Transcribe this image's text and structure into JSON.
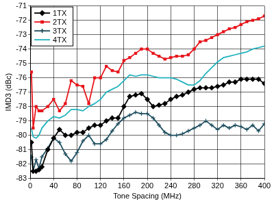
{
  "chart_data": {
    "type": "line",
    "x_label": "Tone Spacing (MHz)",
    "y_label": "IMD3 (dBc)",
    "x": [
      2,
      5,
      10,
      15,
      20,
      30,
      40,
      50,
      60,
      70,
      80,
      90,
      100,
      110,
      120,
      130,
      140,
      150,
      160,
      170,
      180,
      190,
      200,
      210,
      220,
      230,
      240,
      250,
      260,
      270,
      280,
      290,
      300,
      310,
      320,
      330,
      340,
      350,
      360,
      370,
      380,
      390,
      400
    ],
    "series": [
      {
        "name": "1TX",
        "color": "#000000",
        "marker": "diamond",
        "values": [
          -80.5,
          -82.5,
          -82.5,
          -82.4,
          -82.2,
          -81.0,
          -80.2,
          -79.6,
          -80.0,
          -80.0,
          -79.8,
          -79.8,
          -79.5,
          -79.3,
          -79.3,
          -79.0,
          -78.8,
          -78.8,
          -78.0,
          -77.3,
          -77.2,
          -77.1,
          -77.5,
          -78.0,
          -77.9,
          -77.8,
          -77.5,
          -77.3,
          -77.2,
          -77.0,
          -76.8,
          -76.7,
          -76.7,
          -76.7,
          -76.6,
          -76.5,
          -76.3,
          -76.3,
          -76.1,
          -76.1,
          -76.1,
          -76.1,
          -76.4
        ]
      },
      {
        "name": "2TX",
        "color": "#e8141b",
        "marker": "square",
        "values": [
          -75.6,
          -79.5,
          -78.0,
          -78.3,
          -78.3,
          -78.0,
          -77.5,
          -78.3,
          -77.8,
          -76.2,
          -76.5,
          -76.6,
          -77.8,
          -76.0,
          -76.0,
          -75.2,
          -75.5,
          -75.6,
          -74.8,
          -74.6,
          -74.3,
          -74.0,
          -74.0,
          -74.3,
          -74.5,
          -74.7,
          -74.6,
          -74.5,
          -74.5,
          -74.4,
          -74.0,
          -73.5,
          -73.4,
          -73.2,
          -73.0,
          -72.8,
          -72.6,
          -72.5,
          -72.3,
          -72.1,
          -72.0,
          -71.9,
          -71.7
        ]
      },
      {
        "name": "3TX",
        "color": "#1f4e5f",
        "marker": "plus",
        "values": [
          -81.5,
          -82.5,
          -81.7,
          -82.3,
          -81.5,
          -80.9,
          -80.2,
          -80.5,
          -81.3,
          -81.8,
          -81.2,
          -80.4,
          -80.0,
          -80.6,
          -80.6,
          -80.3,
          -79.7,
          -79.2,
          -78.8,
          -78.6,
          -78.4,
          -78.5,
          -78.5,
          -78.8,
          -79.3,
          -79.8,
          -80.0,
          -80.0,
          -79.9,
          -79.7,
          -79.5,
          -79.3,
          -79.0,
          -79.3,
          -79.6,
          -79.3,
          -79.5,
          -79.3,
          -79.4,
          -79.6,
          -79.3,
          -79.7,
          -79.2
        ]
      },
      {
        "name": "4TX",
        "color": "#20b2be",
        "marker": "none",
        "values": [
          -79.5,
          -80.1,
          -80.2,
          -80.0,
          -79.5,
          -79.0,
          -78.7,
          -78.8,
          -78.6,
          -78.2,
          -78.2,
          -78.3,
          -78.0,
          -77.8,
          -77.5,
          -77.0,
          -76.8,
          -76.6,
          -76.2,
          -75.8,
          -75.9,
          -75.8,
          -75.8,
          -75.9,
          -76.0,
          -76.0,
          -76.0,
          -76.1,
          -76.3,
          -76.5,
          -76.5,
          -76.2,
          -75.7,
          -75.3,
          -74.9,
          -74.6,
          -74.5,
          -74.4,
          -74.3,
          -74.2,
          -74.0,
          -73.9,
          -73.8
        ]
      }
    ],
    "xlim": [
      0,
      400
    ],
    "xticks": [
      0,
      40,
      80,
      120,
      160,
      200,
      240,
      280,
      320,
      360,
      400
    ],
    "ylim": [
      -83,
      -71
    ],
    "yticks": [
      -83,
      -82,
      -81,
      -80,
      -79,
      -78,
      -77,
      -76,
      -75,
      -74,
      -73,
      -72,
      -71
    ],
    "grid": true,
    "legend": "upper left"
  }
}
